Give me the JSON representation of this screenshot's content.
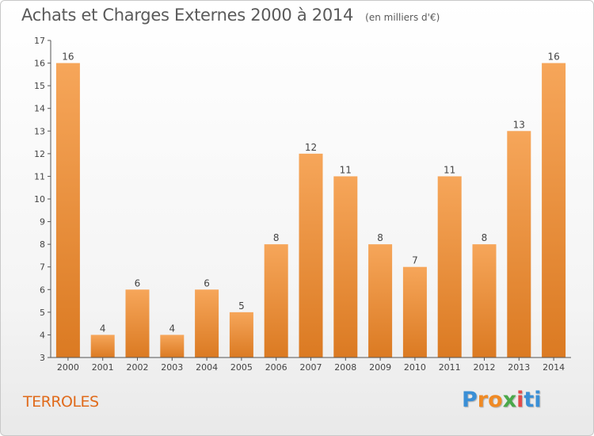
{
  "header": {
    "title": "Achats et Charges Externes 2000 à 2014",
    "unit": "(en milliers d'€)"
  },
  "footer": {
    "commune": "TERROLES",
    "logo_letters": [
      "P",
      "r",
      "o",
      "x",
      "i",
      "ti"
    ]
  },
  "colors": {
    "bar_light": "#f6a65a",
    "bar_dark": "#db7a22",
    "axis": "#555555",
    "text": "#444444"
  },
  "chart_data": {
    "type": "bar",
    "categories": [
      "2000",
      "2001",
      "2002",
      "2003",
      "2004",
      "2005",
      "2006",
      "2007",
      "2008",
      "2009",
      "2010",
      "2011",
      "2012",
      "2013",
      "2014"
    ],
    "values": [
      16,
      4,
      6,
      4,
      6,
      5,
      8,
      12,
      11,
      8,
      7,
      11,
      8,
      13,
      16
    ],
    "ylim": [
      3,
      17
    ],
    "yticks": [
      3,
      4,
      5,
      6,
      7,
      8,
      9,
      10,
      11,
      12,
      13,
      14,
      15,
      16,
      17
    ],
    "grid": false,
    "data_labels": true
  }
}
